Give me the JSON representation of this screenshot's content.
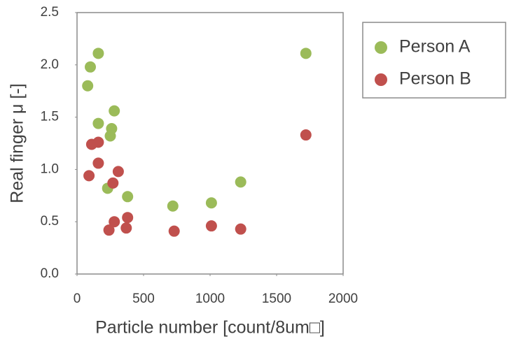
{
  "chart_data": {
    "type": "scatter",
    "x_label": "Particle number [count/8um□]",
    "y_label": "Real finger μ [-]",
    "xlim": [
      0,
      2000
    ],
    "xticks": [
      0,
      500,
      1000,
      1500,
      2000
    ],
    "ylim": [
      0,
      2.5
    ],
    "yticks": [
      {
        "value": 0,
        "label": "0.0"
      },
      {
        "value": 0.5,
        "label": "0.5"
      },
      {
        "value": 1,
        "label": "1.0"
      },
      {
        "value": 1.5,
        "label": "1.5"
      },
      {
        "value": 2,
        "label": "2.0"
      },
      {
        "value": 2.5,
        "label": "2.5"
      }
    ],
    "grid": false,
    "legend": "right",
    "series": [
      {
        "name": "Person A",
        "color": "#9bbb59",
        "x": [
          80,
          100,
          160,
          160,
          280,
          260,
          250,
          230,
          380,
          720,
          1010,
          1230,
          1720
        ],
        "values": [
          1.8,
          1.98,
          2.11,
          1.44,
          1.56,
          1.39,
          1.32,
          0.82,
          0.74,
          0.65,
          0.68,
          0.88,
          2.11
        ]
      },
      {
        "name": "Person B",
        "color": "#c0504d",
        "x": [
          90,
          110,
          160,
          160,
          310,
          270,
          280,
          240,
          380,
          370,
          730,
          1010,
          1230,
          1720
        ],
        "values": [
          0.94,
          1.24,
          1.26,
          1.06,
          0.98,
          0.87,
          0.5,
          0.42,
          0.54,
          0.44,
          0.41,
          0.46,
          0.43,
          1.33
        ]
      }
    ]
  }
}
